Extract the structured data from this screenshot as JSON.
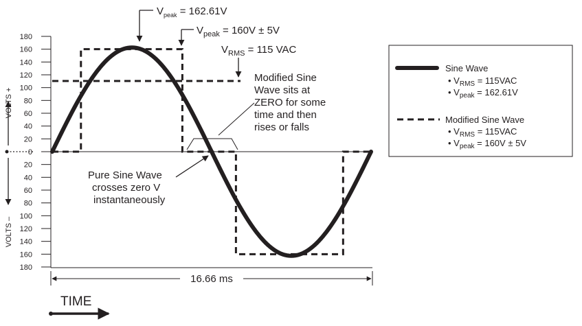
{
  "chart_data": {
    "type": "line",
    "title": "",
    "y_ticks_upper": [
      "180",
      "160",
      "140",
      "120",
      "100",
      "80",
      "60",
      "40",
      "20"
    ],
    "y_zero": "0",
    "y_ticks_lower": [
      "20",
      "40",
      "60",
      "80",
      "100",
      "120",
      "140",
      "160",
      "180"
    ],
    "ylim": [
      -180,
      180
    ],
    "ylabel_plus": "VOLTS +",
    "ylabel_minus": "VOLTS –",
    "period_label": "16.66 ms",
    "time_label": "TIME",
    "x_unit": "ms",
    "x_range": [
      0,
      16.66
    ],
    "series": [
      {
        "name": "Sine Wave",
        "style": "solid",
        "vrms": "115VAC",
        "vpeak": "162.61V",
        "x": [
          0,
          0.833,
          1.666,
          2.499,
          3.332,
          4.165,
          4.998,
          5.831,
          6.664,
          7.497,
          8.33,
          9.163,
          9.996,
          10.829,
          11.662,
          12.495,
          13.328,
          14.161,
          14.994,
          15.827,
          16.66
        ],
        "y": [
          0,
          50.2,
          95.6,
          131.6,
          154.7,
          162.6,
          154.7,
          131.6,
          95.6,
          50.2,
          0,
          -50.2,
          -95.6,
          -131.6,
          -154.7,
          -162.6,
          -154.7,
          -131.6,
          -95.6,
          -50.2,
          0
        ]
      },
      {
        "name": "Modified Sine Wave",
        "style": "dashed",
        "vrms": "115VAC",
        "vpeak": "160V ± 5V",
        "x": [
          0,
          1.5,
          1.5,
          6.8,
          6.8,
          9.6,
          9.6,
          15.2,
          15.2,
          16.66
        ],
        "y": [
          0,
          0,
          160,
          160,
          0,
          0,
          -160,
          -160,
          0,
          0
        ]
      }
    ],
    "reference_lines": [
      {
        "name": "V_RMS",
        "y": 115
      }
    ],
    "annotations": {
      "vpeak_sine": {
        "v": "V",
        "sub": "peak",
        "rest": " = 162.61V"
      },
      "vpeak_mod": {
        "v": "V",
        "sub": "peak",
        "rest": " = 160V ± 5V"
      },
      "vrms": {
        "v": "V",
        "sub": "RMS",
        "rest": " = 115 VAC"
      },
      "modified_note": [
        "Modified Sine",
        "Wave sits at",
        "ZERO for some",
        "time and then",
        "rises or falls"
      ],
      "pure_note": [
        "Pure Sine Wave",
        "crosses zero V",
        "instantaneously"
      ]
    },
    "legend": {
      "placement": "right",
      "sine_label": "Sine Wave",
      "sine_rms_sub": "RMS",
      "sine_rms_val": " = 115VAC",
      "sine_peak_sub": "peak",
      "sine_peak_val": " = 162.61V",
      "mod_label": "Modified Sine Wave",
      "mod_rms_sub": "RMS",
      "mod_rms_val": " = 115VAC",
      "mod_peak_sub": "peak",
      "mod_peak_val": " = 160V ± 5V",
      "bullet": "• ",
      "v": "V"
    },
    "colors": {
      "ink": "#231f20",
      "background": "#ffffff"
    }
  }
}
